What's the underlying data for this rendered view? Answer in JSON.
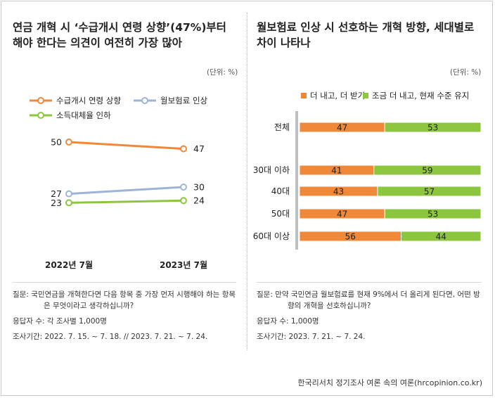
{
  "left": {
    "title_line1": "연금 개혁 시 ‘수급개시 연령 상향’(47%)부터",
    "title_line2": "해야 한다는 의견이 여전히 가장 많아",
    "unit": "(단위: %)",
    "note_question_label": "질문:",
    "note_question": "국민연금을 개혁한다면 다음 항목 중 가장 먼저 시행해야 하는 항목은 무엇이라고 생각하십니까?",
    "note_respondents": "응답자 수: 각 조사별 1,000명",
    "note_period": "조사기간: 2022. 7. 15. ~ 7. 18. // 2023. 7. 21. ~ 7. 24."
  },
  "right": {
    "title_line1": "월보험료 인상 시 선호하는 개혁 방향, 세대별로",
    "title_line2": "차이 나타나",
    "unit": "(단위: %)",
    "note_question_label": "질문:",
    "note_question": "만약 국민연금 월보험료를 현재 9%에서 더 올리게 된다면, 어떤 방향의 개혁을 선호하십니까?",
    "note_respondents": "응답자 수: 1,000명",
    "note_period": "조사기간: 2023. 7. 21. ~ 7. 24."
  },
  "footer": "한국리서치 정기조사 여론 속의 여론(hrcopinion.co.kr)",
  "chart_data": [
    {
      "type": "line",
      "categories": [
        "2022년 7월",
        "2023년 7월"
      ],
      "series": [
        {
          "name": "수급개시 연령 상향",
          "values": [
            50,
            47
          ],
          "color": "#f0883a"
        },
        {
          "name": "월보험료 인상",
          "values": [
            27,
            30
          ],
          "color": "#9db4d6"
        },
        {
          "name": "소득대체율 인하",
          "values": [
            23,
            24
          ],
          "color": "#8cc63f"
        }
      ],
      "legend": "top-left",
      "grid": false
    },
    {
      "type": "bar",
      "orientation": "horizontal-stacked",
      "categories": [
        "전체",
        "30대 이하",
        "40대",
        "50대",
        "60대 이상"
      ],
      "series": [
        {
          "name": "더 내고, 더 받기",
          "values": [
            47,
            41,
            43,
            47,
            56
          ],
          "color": "#f0883a"
        },
        {
          "name": "조금 더 내고, 현재 수준 유지",
          "values": [
            53,
            59,
            57,
            53,
            44
          ],
          "color": "#8cc63f"
        }
      ],
      "xlim": [
        0,
        100
      ],
      "legend": "top",
      "grid": false
    }
  ]
}
